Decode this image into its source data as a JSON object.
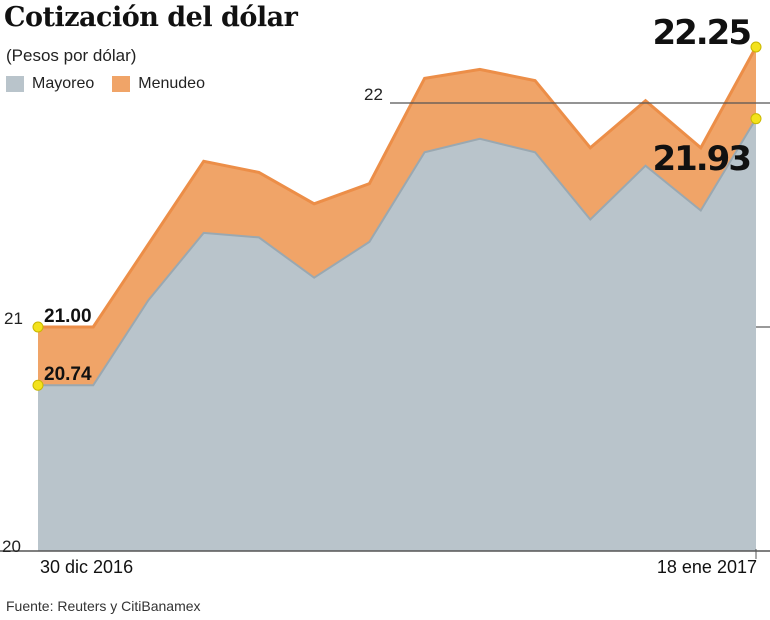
{
  "chart_data": {
    "type": "area",
    "title": "Cotización del dólar",
    "subtitle": "(Pesos por dólar)",
    "source": "Fuente: Reuters y CitiBanamex",
    "x_labels": {
      "start": "30 dic 2016",
      "end": "18 ene 2017"
    },
    "y_ticks": [
      20,
      21,
      22
    ],
    "ylim": [
      20,
      22.35
    ],
    "legend_placement": "top-left",
    "series": [
      {
        "name": "Mayoreo",
        "color": "#b9c4cb",
        "values": [
          20.74,
          20.74,
          21.12,
          21.42,
          21.4,
          21.22,
          21.38,
          21.78,
          21.84,
          21.78,
          21.48,
          21.72,
          21.52,
          21.93
        ]
      },
      {
        "name": "Menudeo",
        "color": "#f0a468",
        "values": [
          21.0,
          21.0,
          21.37,
          21.74,
          21.69,
          21.55,
          21.64,
          22.11,
          22.15,
          22.1,
          21.8,
          22.01,
          21.8,
          22.25
        ]
      }
    ],
    "annotations": [
      {
        "text": "21.00"
      },
      {
        "text": "20.74"
      },
      {
        "text": "22.25"
      },
      {
        "text": "21.93"
      }
    ]
  }
}
